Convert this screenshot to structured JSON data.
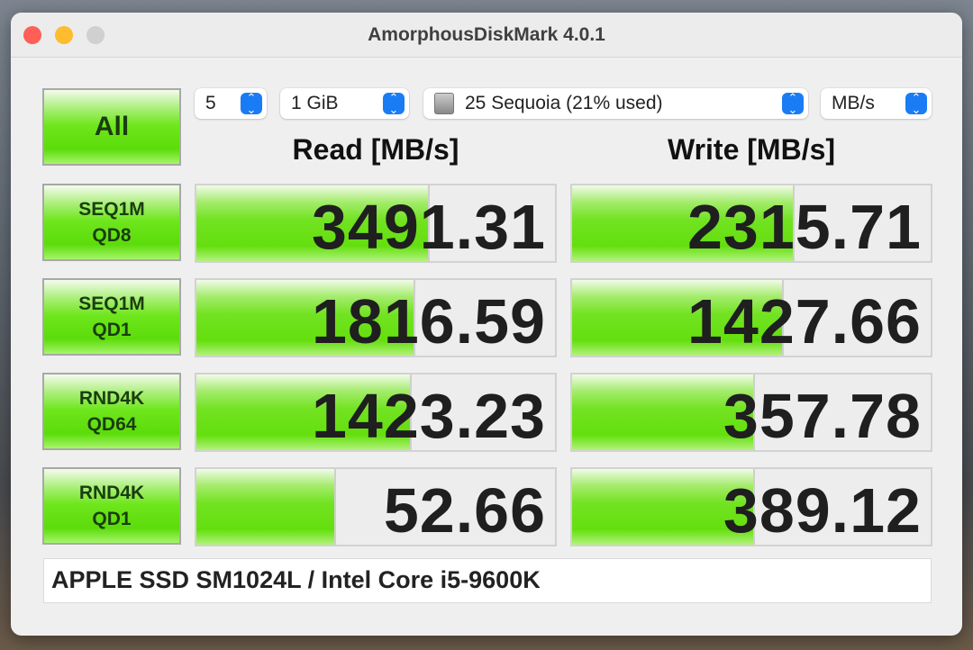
{
  "window": {
    "title": "AmorphousDiskMark 4.0.1"
  },
  "controls": {
    "all_label": "All",
    "count": "5",
    "size": "1 GiB",
    "drive": "25 Sequoia (21% used)",
    "unit": "MB/s"
  },
  "headers": {
    "read": "Read [MB/s]",
    "write": "Write [MB/s]"
  },
  "rows": [
    {
      "line1": "SEQ1M",
      "line2": "QD8",
      "read": "3491.31",
      "write": "2315.71",
      "read_fill": 0.65,
      "write_fill": 0.62
    },
    {
      "line1": "SEQ1M",
      "line2": "QD1",
      "read": "1816.59",
      "write": "1427.66",
      "read_fill": 0.61,
      "write_fill": 0.59
    },
    {
      "line1": "RND4K",
      "line2": "QD64",
      "read": "1423.23",
      "write": "357.78",
      "read_fill": 0.6,
      "write_fill": 0.51
    },
    {
      "line1": "RND4K",
      "line2": "QD1",
      "read": "52.66",
      "write": "389.12",
      "read_fill": 0.39,
      "write_fill": 0.51
    }
  ],
  "footer": "APPLE SSD SM1024L / Intel Core i5-9600K",
  "colors": {
    "bar_green": "#64df0e",
    "stepper_blue": "#1a7cf5",
    "close": "#fe5f57",
    "minimize": "#febc2e",
    "zoom_inactive": "#d0d0d0"
  }
}
